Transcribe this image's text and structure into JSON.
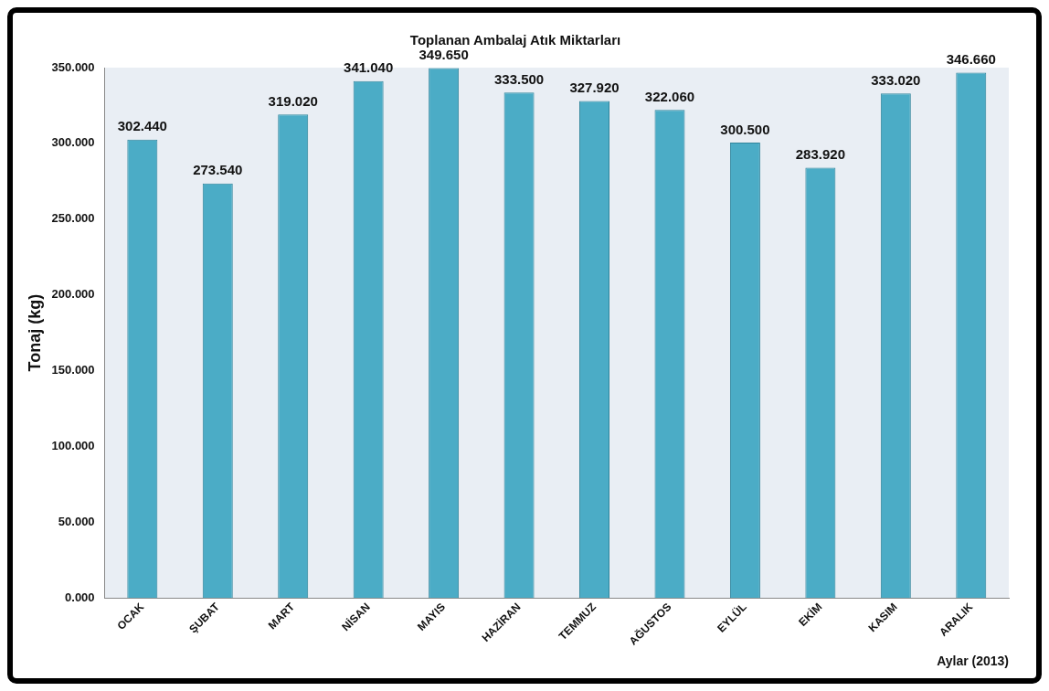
{
  "chart_data": {
    "type": "bar",
    "title": "Toplanan Ambalaj Atık Miktarları",
    "ylabel": "Tonaj (kg)",
    "xlabel": "Aylar (2013)",
    "categories": [
      "OCAK",
      "ŞUBAT",
      "MART",
      "NİSAN",
      "MAYIS",
      "HAZİRAN",
      "TEMMUZ",
      "AĞUSTOS",
      "EYLÜL",
      "EKİM",
      "KASIM",
      "ARALIK"
    ],
    "values": [
      302.44,
      273.54,
      319.02,
      341.04,
      349.65,
      333.5,
      327.92,
      322.06,
      300.5,
      283.92,
      333.02,
      346.66
    ],
    "value_labels": [
      "302.440",
      "273.540",
      "319.020",
      "341.040",
      "349.650",
      "333.500",
      "327.920",
      "322.060",
      "300.500",
      "283.920",
      "333.020",
      "346.660"
    ],
    "color": "#4bacc6",
    "ylim": [
      0,
      350
    ],
    "yticks": [
      {
        "value": 0,
        "label": "0.000"
      },
      {
        "value": 50,
        "label": "50.000"
      },
      {
        "value": 100,
        "label": "100.000"
      },
      {
        "value": 150,
        "label": "150.000"
      },
      {
        "value": 200,
        "label": "200.000"
      },
      {
        "value": 250,
        "label": "250.000"
      },
      {
        "value": 300,
        "label": "300.000"
      },
      {
        "value": 350,
        "label": "350.000"
      }
    ],
    "grid": false,
    "legend": false
  }
}
